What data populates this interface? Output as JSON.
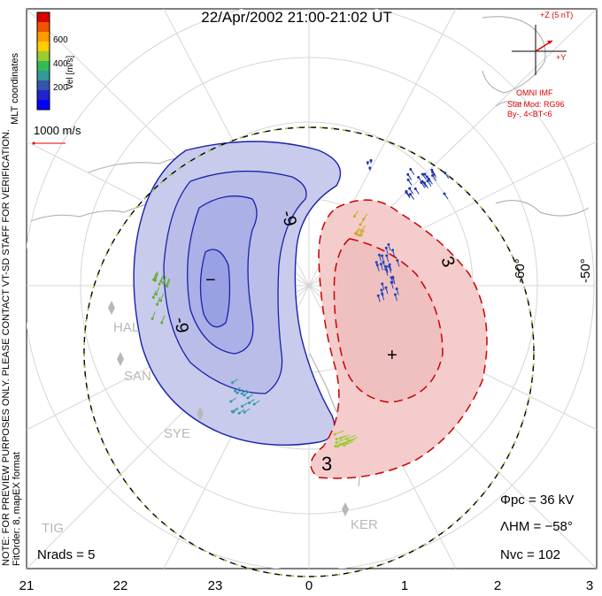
{
  "title": "22/Apr/2002 21:00-21:02 UT",
  "colorbar": {
    "label": "Vel [m/s]",
    "ticks": [
      "600",
      "400",
      "200"
    ],
    "colors": [
      "#dd0000",
      "#ee5500",
      "#ff9900",
      "#ffcc00",
      "#99cc33",
      "#33bb55",
      "#339999",
      "#3355aa",
      "#2222cc",
      "#0000ff"
    ]
  },
  "left_notes": {
    "coords": "MLT coordinates",
    "note": "NOTE: FOR PREVIEW PURPOSES ONLY. PLEASE CONTACT VT-SD STAFF FOR VERIFICATION.",
    "fit": "FitOrder: 8, mapEX format"
  },
  "reference_vector": "1000 m/s",
  "imf": {
    "z_label": "+Z (5 nT)",
    "y_label": "+Y",
    "source": "OMNI IMF",
    "model": "Stat Mod: RG96",
    "condition": "By-, 4<BT<6"
  },
  "contours": {
    "neg_label": "-9",
    "neg_label2": "-9",
    "pos_label": "3",
    "pos_label2": "3",
    "min_marker": "−",
    "max_marker": "+"
  },
  "lat_labels": [
    "-60°",
    "-50°"
  ],
  "stations": [
    "HAL",
    "SAN",
    "SYE",
    "KER",
    "TIG"
  ],
  "stats": {
    "phi_pc": "Φpc = 36 kV",
    "lambda_hm": "ΛHM = −58°",
    "n_vc": "Nvc = 102",
    "n_rads": "Nrads = 5"
  },
  "mlt_ticks": [
    "21",
    "22",
    "23",
    "0",
    "1",
    "2",
    "3"
  ],
  "colors": {
    "negative_fill": "#c8cbec",
    "negative_core": "#9aa0e4",
    "negative_line": "#1a22aa",
    "positive_fill": "#f4cccc",
    "positive_line": "#cc0000",
    "boundary_green": "#9cd23a",
    "land": "#b5b5b5"
  }
}
